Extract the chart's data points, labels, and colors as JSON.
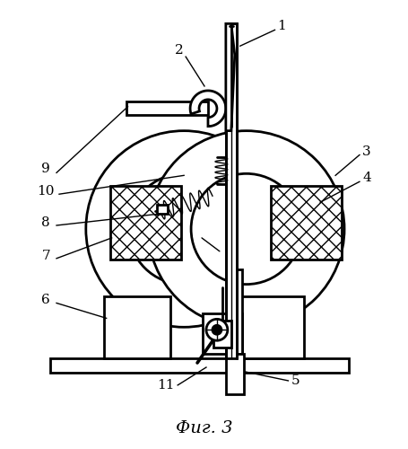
{
  "bg_color": "#ffffff",
  "line_color": "#000000",
  "fig_caption": "Фиг. 3",
  "lw_main": 2.0,
  "lw_thin": 1.0
}
